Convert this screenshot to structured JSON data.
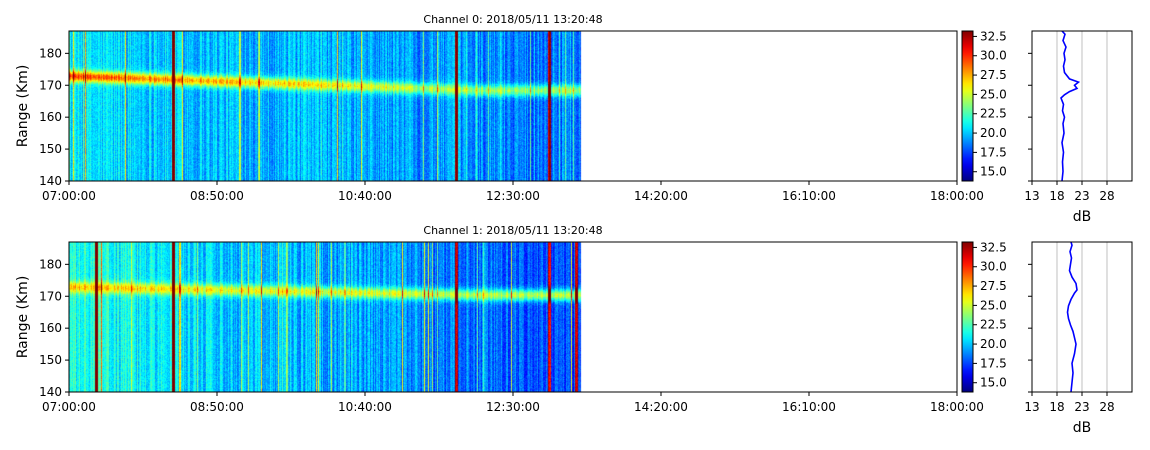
{
  "figure": {
    "time_ticks": [
      "07:00:00",
      "08:50:00",
      "10:40:00",
      "12:30:00",
      "14:20:00",
      "16:10:00",
      "18:00:00"
    ],
    "range_ticks": [
      140,
      150,
      160,
      170,
      180
    ],
    "range_label": "Range (Km)",
    "colorbar_ticks": [
      "15.0",
      "17.5",
      "20.0",
      "22.5",
      "25.0",
      "27.5",
      "30.0",
      "32.5"
    ],
    "profile_ticks": [
      "13",
      "18",
      "23",
      "28"
    ],
    "profile_label": "dB",
    "colors": {
      "profile_line": "#0000ff",
      "grid": "#b0b0b0"
    }
  },
  "chart_data": [
    {
      "type": "heatmap",
      "title": "Channel 0: 2018/05/11 13:20:48",
      "xlabel": "",
      "ylabel": "Range (Km)",
      "x_range": [
        "07:00:00",
        "18:00:00"
      ],
      "data_end_time": "13:20:00",
      "ylim": [
        140,
        187
      ],
      "colorbar_range": [
        13.8,
        33.2
      ],
      "colormap": "jet",
      "background_level_db": [
        20.5,
        18.5
      ],
      "band": {
        "center_start_km": 173.0,
        "center_end_km": 168.5,
        "peak_db_start": 29.5,
        "peak_db_end": 24.0
      },
      "spike_times": [
        "08:17:00",
        "11:48:00",
        "12:57:00"
      ],
      "profile": {
        "type": "line",
        "xlabel": "dB",
        "xlim": [
          13,
          33
        ],
        "range_km": [
          140,
          143,
          146,
          149,
          152,
          155,
          158,
          160,
          162,
          164,
          166,
          167,
          168,
          169,
          170,
          171,
          172,
          174,
          176,
          178,
          180,
          182,
          184,
          186,
          187
        ],
        "db": [
          19.0,
          19.2,
          19.1,
          19.3,
          19.0,
          19.4,
          19.2,
          19.5,
          19.1,
          19.3,
          18.8,
          19.5,
          20.5,
          22.0,
          21.5,
          22.3,
          20.5,
          19.5,
          19.3,
          19.6,
          19.4,
          19.8,
          19.2,
          19.6,
          19.0
        ]
      }
    },
    {
      "type": "heatmap",
      "title": "Channel 1: 2018/05/11 13:20:48",
      "xlabel": "",
      "ylabel": "Range (Km)",
      "x_range": [
        "07:00:00",
        "18:00:00"
      ],
      "data_end_time": "13:20:00",
      "ylim": [
        140,
        187
      ],
      "colorbar_range": [
        13.8,
        33.2
      ],
      "colormap": "jet",
      "background_level_db": [
        21.5,
        17.5
      ],
      "band": {
        "center_start_km": 173.0,
        "center_end_km": 170.5,
        "peak_db_start": 27.0,
        "peak_db_end": 24.5
      },
      "spike_times": [
        "07:20:00",
        "08:17:00",
        "11:48:00",
        "12:57:00",
        "13:17:00"
      ],
      "profile": {
        "type": "line",
        "xlabel": "dB",
        "xlim": [
          13,
          33
        ],
        "range_km": [
          140,
          143,
          146,
          149,
          152,
          155,
          157,
          159,
          161,
          163,
          165,
          167,
          169,
          171,
          172,
          174,
          176,
          178,
          180,
          182,
          184,
          186,
          187
        ],
        "db": [
          20.8,
          21.0,
          21.2,
          21.0,
          21.5,
          21.8,
          21.5,
          21.2,
          20.7,
          20.3,
          20.1,
          20.3,
          20.8,
          21.5,
          22.0,
          21.8,
          21.0,
          20.5,
          20.7,
          20.9,
          20.6,
          21.0,
          20.8
        ]
      }
    }
  ]
}
